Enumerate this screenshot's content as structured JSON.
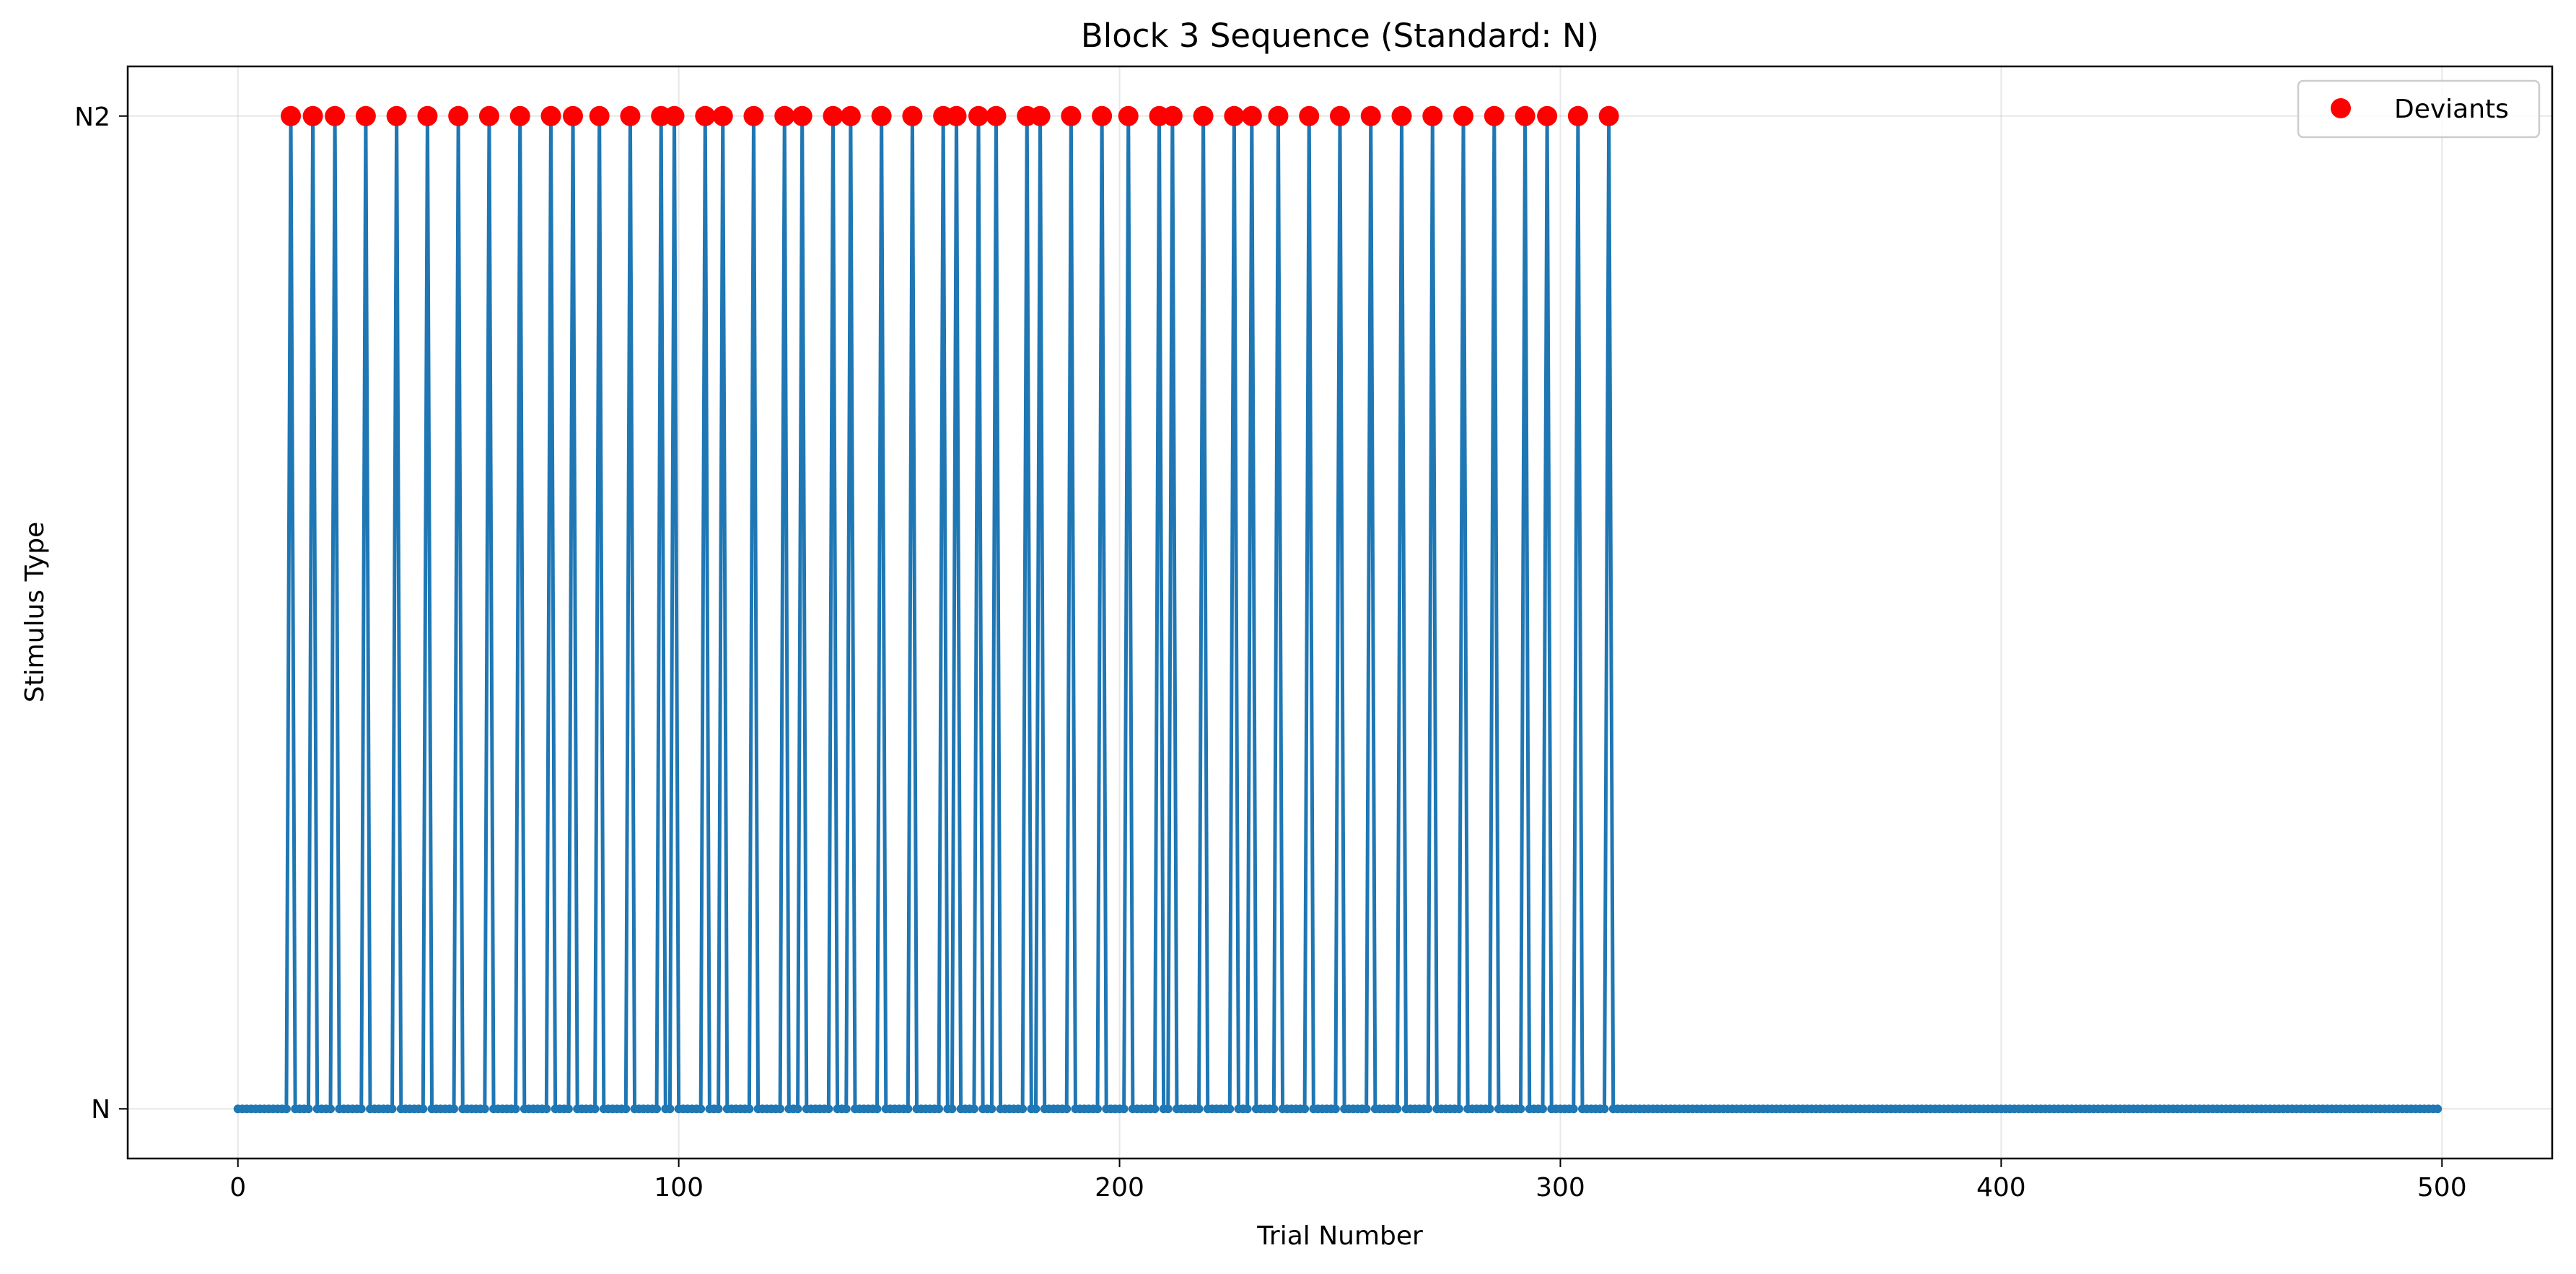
{
  "chart_data": {
    "type": "line",
    "title": "Block 3 Sequence (Standard: N)",
    "xlabel": "Trial Number",
    "ylabel": "Stimulus Type",
    "xlim": [
      -25,
      525
    ],
    "ylim": [
      -0.05,
      1.05
    ],
    "xticks": [
      0,
      100,
      200,
      300,
      400,
      500
    ],
    "yticks": [
      0,
      1
    ],
    "ytick_labels": [
      "N",
      "N2"
    ],
    "n_trials": 500,
    "grid": true,
    "legend": {
      "placement": "top-right",
      "entries": [
        "Deviants"
      ]
    },
    "colors": {
      "sequence": "#1f77b4",
      "deviants": "#ff0000"
    },
    "series": [
      {
        "name": "Deviants",
        "x": [
          12,
          17,
          22,
          29,
          36,
          43,
          50,
          57,
          64,
          71,
          76,
          82,
          89,
          96,
          99,
          106,
          110,
          117,
          124,
          128,
          135,
          139,
          146,
          153,
          160,
          163,
          168,
          172,
          179,
          182,
          189,
          196,
          202,
          209,
          212,
          219,
          226,
          230,
          236,
          243,
          250,
          257,
          264,
          271,
          278,
          285,
          292,
          297,
          304,
          311
        ],
        "y": 1
      }
    ]
  }
}
